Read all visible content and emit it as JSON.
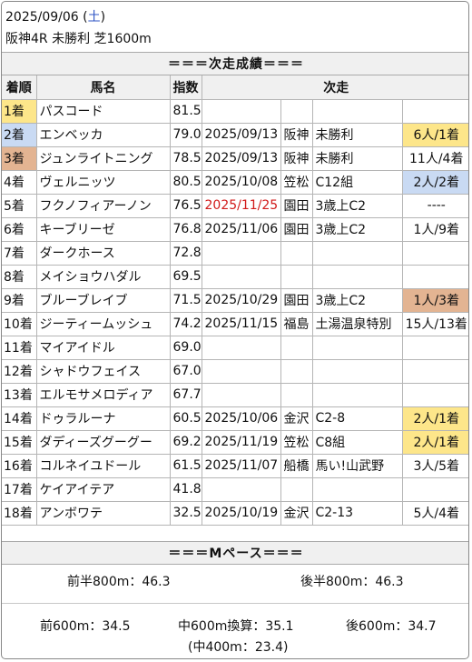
{
  "header": {
    "date": "2025/09/06",
    "weekday_open": " (",
    "weekday": "土",
    "weekday_close": ")",
    "race": "阪神4R 未勝利 芝1600m"
  },
  "section_next": "＝＝＝次走成績＝＝＝",
  "columns": [
    "着順",
    "馬名",
    "指数",
    "次走"
  ],
  "rows": [
    {
      "rank": "1着",
      "name": "パスコード",
      "index": "81.5",
      "date": "",
      "track": "",
      "race": "",
      "result": ""
    },
    {
      "rank": "2着",
      "name": "エンベッカ",
      "index": "79.0",
      "date": "2025/09/13",
      "track": "阪神",
      "race": "未勝利",
      "result": "6人/1着"
    },
    {
      "rank": "3着",
      "name": "ジュンライトニング",
      "index": "78.5",
      "date": "2025/09/13",
      "track": "阪神",
      "race": "未勝利",
      "result": "11人/4着"
    },
    {
      "rank": "4着",
      "name": "ヴェルニッツ",
      "index": "80.5",
      "date": "2025/10/08",
      "track": "笠松",
      "race": "C12組",
      "result": "2人/2着"
    },
    {
      "rank": "5着",
      "name": "フクノフィアーノン",
      "index": "76.5",
      "date": "2025/11/25",
      "track": "園田",
      "race": "3歳上C2",
      "result": "----"
    },
    {
      "rank": "6着",
      "name": "キーブリーゼ",
      "index": "76.8",
      "date": "2025/11/06",
      "track": "園田",
      "race": "3歳上C2",
      "result": "1人/9着"
    },
    {
      "rank": "7着",
      "name": "ダークホース",
      "index": "72.8",
      "date": "",
      "track": "",
      "race": "",
      "result": ""
    },
    {
      "rank": "8着",
      "name": "メイショウハダル",
      "index": "69.5",
      "date": "",
      "track": "",
      "race": "",
      "result": ""
    },
    {
      "rank": "9着",
      "name": "ブルーブレイブ",
      "index": "71.5",
      "date": "2025/10/29",
      "track": "園田",
      "race": "3歳上C2",
      "result": "1人/3着"
    },
    {
      "rank": "10着",
      "name": "ジーティームッシュ",
      "index": "74.2",
      "date": "2025/11/15",
      "track": "福島",
      "race": "土湯温泉特別",
      "result": "15人/13着"
    },
    {
      "rank": "11着",
      "name": "マイアイドル",
      "index": "69.0",
      "date": "",
      "track": "",
      "race": "",
      "result": ""
    },
    {
      "rank": "12着",
      "name": "シャドウフェイス",
      "index": "67.0",
      "date": "",
      "track": "",
      "race": "",
      "result": ""
    },
    {
      "rank": "13着",
      "name": "エルモサメロディア",
      "index": "67.7",
      "date": "",
      "track": "",
      "race": "",
      "result": ""
    },
    {
      "rank": "14着",
      "name": "ドゥラルーナ",
      "index": "60.5",
      "date": "2025/10/06",
      "track": "金沢",
      "race": "C2-8",
      "result": "2人/1着"
    },
    {
      "rank": "15着",
      "name": "ダディーズグーグー",
      "index": "69.2",
      "date": "2025/11/19",
      "track": "笠松",
      "race": "C8組",
      "result": "2人/1着"
    },
    {
      "rank": "16着",
      "name": "コルネイユドール",
      "index": "61.5",
      "date": "2025/11/07",
      "track": "船橋",
      "race": "馬い!山武野",
      "result": "3人/5着"
    },
    {
      "rank": "17着",
      "name": "ケイアイテア",
      "index": "41.8",
      "date": "",
      "track": "",
      "race": "",
      "result": ""
    },
    {
      "rank": "18着",
      "name": "アンボワテ",
      "index": "32.5",
      "date": "2025/10/19",
      "track": "金沢",
      "race": "C2-13",
      "result": "5人/4着"
    }
  ],
  "rank_colors": {
    "1着": "#fde68a",
    "2着": "#c9daf3",
    "3着": "#e3b492"
  },
  "result_colors": {
    "1着": "#fde68a",
    "2着": "#c9daf3",
    "3着": "#e3b492"
  },
  "highlight_date_color": "#d11a1a",
  "highlight_dates": [
    "2025/11/25"
  ],
  "section_pace": "＝＝＝Mペース＝＝＝",
  "pace": {
    "first_half": "前半800m：46.3",
    "second_half": "後半800m：46.3",
    "first600": "前600m：34.5",
    "mid600": "中600m換算：35.1",
    "last600": "後600m：34.7",
    "mid400": "(中400m：23.4)"
  }
}
